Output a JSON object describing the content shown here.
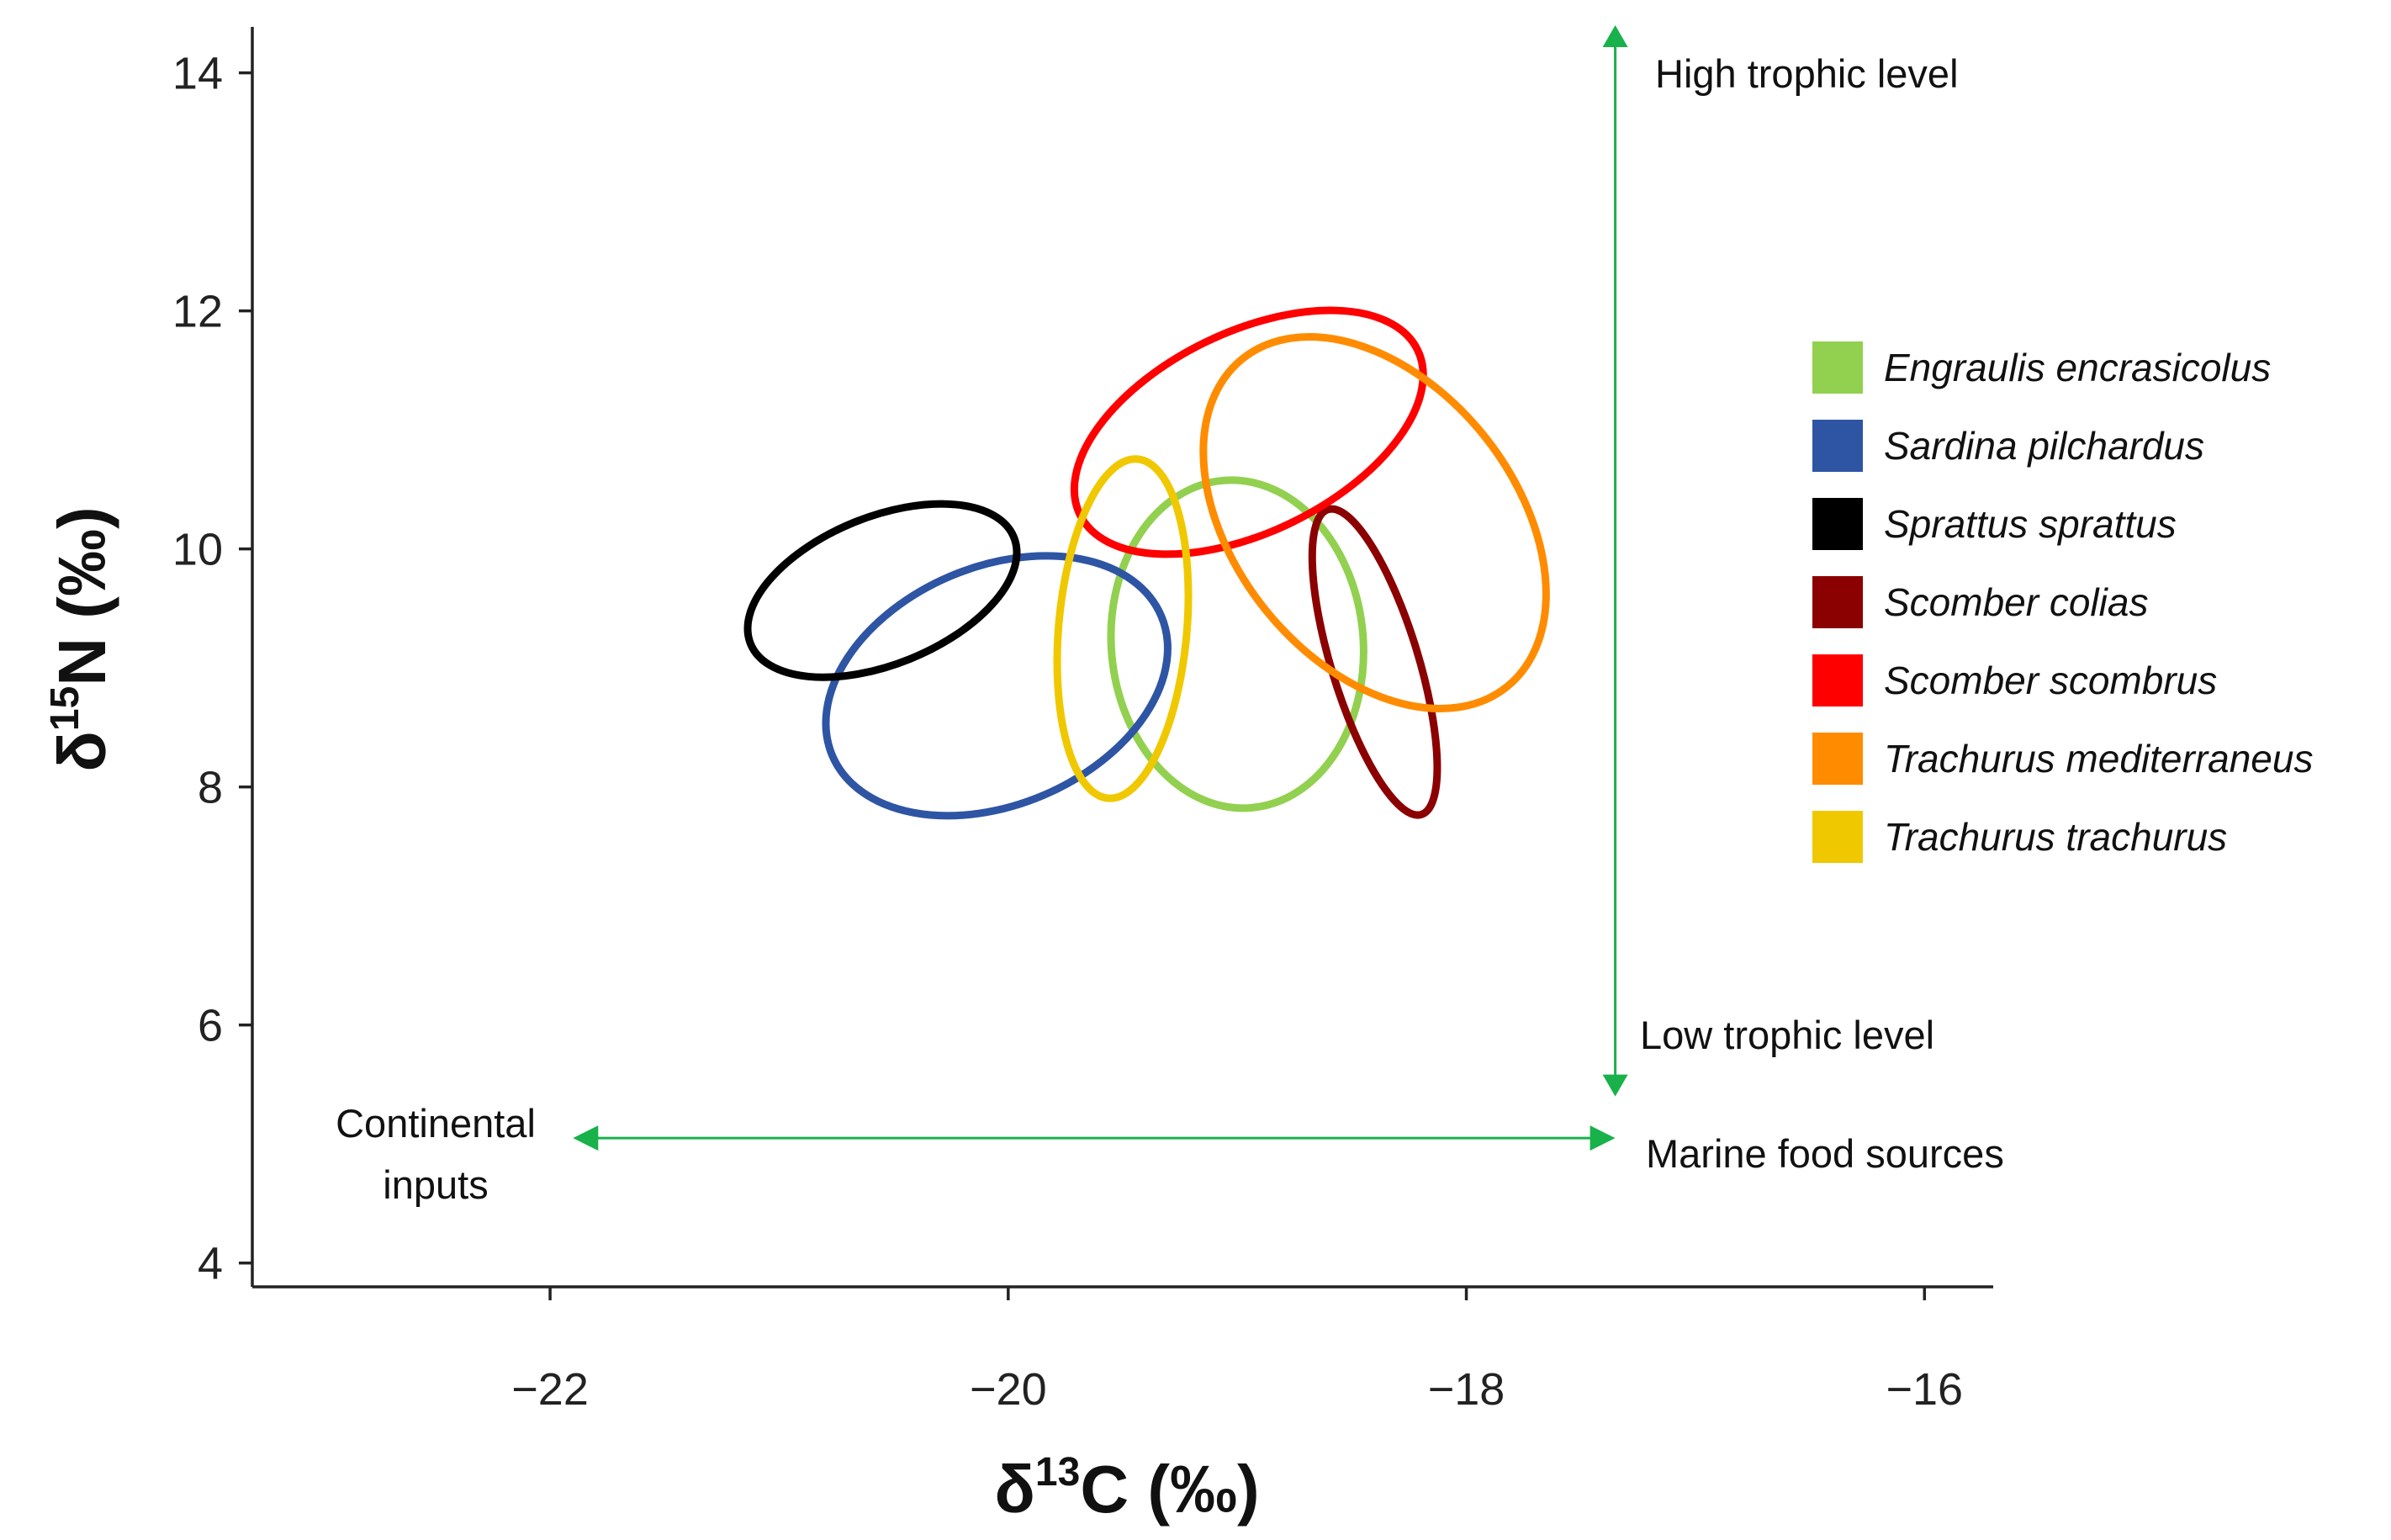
{
  "chart_data": {
    "type": "scatter",
    "subtype": "standard ellipses (isotopic niche)",
    "xlabel": {
      "base": "δ",
      "sup": "13",
      "rest": "C (‰)"
    },
    "ylabel": {
      "base": "δ",
      "sup": "15",
      "rest": "N (‰)"
    },
    "xlim": [
      -23.3,
      -15.7
    ],
    "ylim": [
      3.8,
      14.4
    ],
    "x_ticks": [
      {
        "value": -22,
        "label": "−22"
      },
      {
        "value": -20,
        "label": "−20"
      },
      {
        "value": -18,
        "label": "−18"
      },
      {
        "value": -16,
        "label": "−16"
      }
    ],
    "y_ticks": [
      {
        "value": 4,
        "label": "4"
      },
      {
        "value": 6,
        "label": "6"
      },
      {
        "value": 8,
        "label": "8"
      },
      {
        "value": 10,
        "label": "10"
      },
      {
        "value": 12,
        "label": "12"
      },
      {
        "value": 14,
        "label": "14"
      }
    ],
    "legend_position": "right",
    "series": [
      {
        "name": "Engraulis encrasicolus",
        "color": "#92d050",
        "center": [
          -19.0,
          9.2
        ],
        "semi_axis_x": 0.55,
        "semi_axis_y": 1.38,
        "rotation_deg": 5
      },
      {
        "name": "Sardina pilchardus",
        "color": "#2e54a4",
        "center": [
          -20.05,
          8.85
        ],
        "semi_axis_x": 0.78,
        "semi_axis_y": 1.0,
        "rotation_deg": 23
      },
      {
        "name": "Sprattus sprattus",
        "color": "#000000",
        "center": [
          -20.55,
          9.65
        ],
        "semi_axis_x": 0.62,
        "semi_axis_y": 0.62,
        "rotation_deg": 22
      },
      {
        "name": "Scomber colias",
        "color": "#8b0000",
        "center": [
          -18.4,
          9.05
        ],
        "semi_axis_x": 0.19,
        "semi_axis_y": 1.34,
        "rotation_deg": 17
      },
      {
        "name": "Scomber scombrus",
        "color": "#ff0000",
        "center": [
          -18.95,
          10.98
        ],
        "semi_axis_x": 0.82,
        "semi_axis_y": 0.84,
        "rotation_deg": 26
      },
      {
        "name": "Trachurus mediterraneus",
        "color": "#ff8c00",
        "center": [
          -18.4,
          10.22
        ],
        "semi_axis_x": 0.61,
        "semi_axis_y": 1.77,
        "rotation_deg": 39
      },
      {
        "name": "Trachurus trachurus",
        "color": "#f0c800",
        "center": [
          -19.5,
          9.33
        ],
        "semi_axis_x": 0.28,
        "semi_axis_y": 1.43,
        "rotation_deg": -5
      }
    ],
    "annotations": {
      "trophic_arrow": {
        "x": -17.35,
        "y_from": 5.4,
        "y_to": 14.4,
        "color": "#18b14a"
      },
      "source_arrow": {
        "y": 5.05,
        "x_from": -21.9,
        "x_to": -17.35,
        "color": "#18b14a"
      },
      "high_label": "High trophic level",
      "low_label": "Low trophic level",
      "marine_label": "Marine food sources",
      "continental_line1": "Continental",
      "continental_line2": "inputs"
    }
  }
}
